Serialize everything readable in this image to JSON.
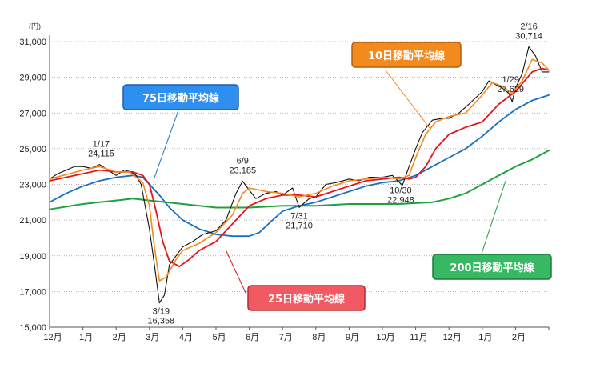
{
  "chart_data": {
    "type": "line",
    "y_unit": "(円)",
    "ylim": [
      15000,
      31000
    ],
    "y_ticks": [
      "31,000",
      "29,000",
      "27,000",
      "25,000",
      "23,000",
      "21,000",
      "19,000",
      "17,000",
      "15,000"
    ],
    "x_ticks": [
      "12月",
      "1月",
      "2月",
      "3月",
      "4月",
      "5月",
      "6月",
      "7月",
      "8月",
      "9月",
      "10月",
      "11月",
      "12月",
      "1月",
      "2月"
    ],
    "grid": "dotted horizontal",
    "colors": {
      "price": "#111111",
      "ma10": "#f28a1e",
      "ma25": "#e8141b",
      "ma75": "#1a70c0",
      "ma200": "#1ea33c"
    },
    "series_labels": {
      "ma10": "10日移動平均線",
      "ma25": "25日移動平均線",
      "ma75": "75日移動平均線",
      "ma200": "200日移動平均線"
    },
    "annotations": [
      {
        "date": "1/17",
        "value": "24,115"
      },
      {
        "date": "3/19",
        "value": "16,358"
      },
      {
        "date": "6/9",
        "value": "23,185"
      },
      {
        "date": "7/31",
        "value": "21,710"
      },
      {
        "date": "10/30",
        "value": "22,948"
      },
      {
        "date": "1/29",
        "value": "27,629"
      },
      {
        "date": "2/16",
        "value": "30,714"
      }
    ],
    "series": {
      "price": {
        "x": [
          0,
          0.25,
          0.5,
          0.75,
          1,
          1.25,
          1.5,
          1.75,
          2,
          2.25,
          2.45,
          2.6,
          2.75,
          2.9,
          3,
          3.15,
          3.3,
          3.45,
          3.6,
          3.8,
          4,
          4.3,
          4.6,
          5,
          5.3,
          5.6,
          5.8,
          5.95,
          6.2,
          6.5,
          6.8,
          7,
          7.3,
          7.5,
          7.8,
          8,
          8.3,
          8.6,
          9,
          9.3,
          9.6,
          10,
          10.3,
          10.6,
          10.8,
          11,
          11.2,
          11.5,
          11.8,
          12,
          12.3,
          12.6,
          13,
          13.2,
          13.4,
          13.6,
          13.8,
          13.9,
          14,
          14.2,
          14.4,
          14.6,
          14.8,
          15
        ],
        "y": [
          23300,
          23600,
          23800,
          24000,
          24000,
          23900,
          24115,
          23800,
          23500,
          23800,
          23700,
          23500,
          23000,
          21500,
          20500,
          18500,
          16358,
          16800,
          18500,
          19000,
          19500,
          19800,
          20200,
          20400,
          21000,
          22500,
          23185,
          22800,
          22200,
          22500,
          22600,
          22400,
          22800,
          21710,
          22200,
          22300,
          23000,
          23100,
          23300,
          23200,
          23400,
          23400,
          23500,
          22948,
          24000,
          25000,
          25900,
          26600,
          26700,
          26700,
          27000,
          27500,
          28200,
          28800,
          28600,
          28400,
          28100,
          27629,
          28400,
          29200,
          30714,
          30200,
          29300,
          29300
        ]
      },
      "ma10": {
        "x": [
          0,
          1,
          1.5,
          2,
          2.4,
          2.8,
          3,
          3.15,
          3.3,
          3.5,
          3.8,
          4,
          4.5,
          5,
          5.5,
          5.8,
          6,
          6.5,
          7,
          7.5,
          8,
          8.5,
          9,
          9.5,
          10,
          10.5,
          10.8,
          11,
          11.3,
          11.6,
          12,
          12.5,
          13,
          13.3,
          13.6,
          13.9,
          14.2,
          14.5,
          14.8,
          15
        ],
        "y": [
          23300,
          23800,
          24000,
          23700,
          23700,
          23100,
          21800,
          19500,
          17600,
          17800,
          18800,
          19300,
          19700,
          20300,
          21300,
          22500,
          22800,
          22600,
          22500,
          22300,
          22500,
          22900,
          23200,
          23300,
          23400,
          23300,
          23500,
          24500,
          25800,
          26500,
          26800,
          27000,
          28000,
          28700,
          28500,
          28100,
          28800,
          30000,
          29800,
          29400
        ]
      },
      "ma25": {
        "x": [
          0,
          1,
          1.5,
          2,
          2.5,
          2.8,
          3,
          3.2,
          3.4,
          3.6,
          3.9,
          4.2,
          4.5,
          5,
          5.5,
          6,
          6.5,
          7,
          7.5,
          8,
          8.5,
          9,
          9.5,
          10,
          10.5,
          10.8,
          11,
          11.3,
          11.6,
          12,
          12.5,
          13,
          13.5,
          14,
          14.5,
          14.8,
          15
        ],
        "y": [
          23200,
          23600,
          23800,
          23700,
          23700,
          23500,
          23000,
          21500,
          19800,
          18700,
          18400,
          18800,
          19300,
          19800,
          20800,
          21800,
          22200,
          22400,
          22400,
          22300,
          22600,
          22900,
          23200,
          23300,
          23400,
          23300,
          23400,
          24000,
          25000,
          25800,
          26200,
          26500,
          27500,
          28200,
          29300,
          29500,
          29400
        ]
      },
      "ma75": {
        "x": [
          0,
          0.5,
          1,
          1.5,
          2,
          2.5,
          2.8,
          3,
          3.3,
          3.6,
          4,
          4.5,
          5,
          5.5,
          6,
          6.3,
          6.7,
          7,
          7.5,
          8,
          8.5,
          9,
          9.5,
          10,
          10.5,
          11,
          11.5,
          12,
          12.5,
          13,
          13.5,
          14,
          14.5,
          15
        ],
        "y": [
          22000,
          22500,
          22900,
          23200,
          23400,
          23500,
          23400,
          23000,
          22400,
          21700,
          21000,
          20500,
          20200,
          20100,
          20100,
          20300,
          21000,
          21500,
          21800,
          22000,
          22300,
          22600,
          22900,
          23100,
          23200,
          23500,
          24000,
          24500,
          25000,
          25700,
          26500,
          27200,
          27700,
          28000
        ]
      },
      "ma200": {
        "x": [
          0,
          1,
          2,
          2.5,
          3,
          4,
          5,
          5.5,
          6,
          7,
          8,
          9,
          10,
          10.5,
          11,
          11.5,
          12,
          12.5,
          13,
          13.5,
          14,
          14.5,
          15
        ],
        "y": [
          21600,
          21900,
          22100,
          22200,
          22100,
          21900,
          21700,
          21700,
          21700,
          21800,
          21800,
          21900,
          21900,
          21900,
          21950,
          22000,
          22200,
          22500,
          23000,
          23500,
          24000,
          24400,
          24900
        ]
      }
    }
  }
}
